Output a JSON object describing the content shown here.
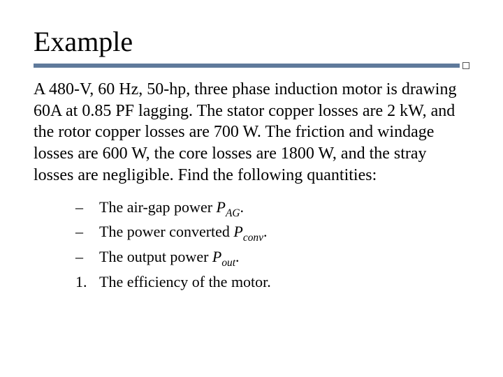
{
  "title": "Example",
  "colors": {
    "rule": "#5f7a9b",
    "text": "#000000",
    "background": "#ffffff",
    "tick_border": "#555555"
  },
  "typography": {
    "title_fontsize": 40,
    "body_fontsize": 24,
    "list_fontsize": 22,
    "family": "Times New Roman"
  },
  "body_text": "A 480-V, 60 Hz, 50-hp, three phase induction motor is drawing 60A at 0.85 PF lagging. The stator copper losses are 2 kW, and the rotor copper losses are 700 W. The friction and windage losses are 600 W, the core losses are 1800 W, and the stray losses are negligible. Find the following quantities:",
  "items": [
    {
      "bullet": "–",
      "pre": "The air-gap power ",
      "sym": "P",
      "sub": "AG",
      "post": "."
    },
    {
      "bullet": "–",
      "pre": "The power converted ",
      "sym": "P",
      "sub": "conv",
      "post": "."
    },
    {
      "bullet": "–",
      "pre": "The output power ",
      "sym": "P",
      "sub": "out",
      "post": "."
    },
    {
      "bullet": "1.",
      "pre": "The efficiency of the motor.",
      "sym": "",
      "sub": "",
      "post": ""
    }
  ]
}
